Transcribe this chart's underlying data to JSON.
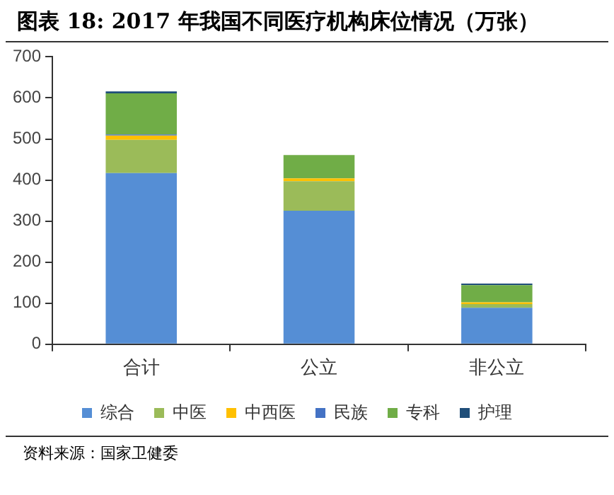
{
  "chart_data": {
    "type": "bar",
    "title": "图表 18: 2017 年我国不同医疗机构床位情况（万张）",
    "categories": [
      "合计",
      "公立",
      "非公立"
    ],
    "stacked": true,
    "series": [
      {
        "name": "综合",
        "color": "#558ed5",
        "values": [
          417,
          325,
          89
        ]
      },
      {
        "name": "中医",
        "color": "#9bbb59",
        "values": [
          81,
          72,
          9
        ]
      },
      {
        "name": "中西医",
        "color": "#ffc000",
        "values": [
          10,
          7,
          4
        ]
      },
      {
        "name": "民族",
        "color": "#4472c4",
        "values": [
          3,
          null,
          null
        ]
      },
      {
        "name": "专科",
        "color": "#70ad47",
        "values": [
          100,
          57,
          42
        ]
      },
      {
        "name": "护理",
        "color": "#1f4e79",
        "values": [
          5,
          null,
          4
        ]
      }
    ],
    "ylim": [
      0,
      700
    ],
    "yticks": [
      0,
      100,
      200,
      300,
      400,
      500,
      600,
      700
    ],
    "grid": false,
    "legend": "bottom",
    "annotations": [
      "资料来源：国家卫健委"
    ]
  }
}
